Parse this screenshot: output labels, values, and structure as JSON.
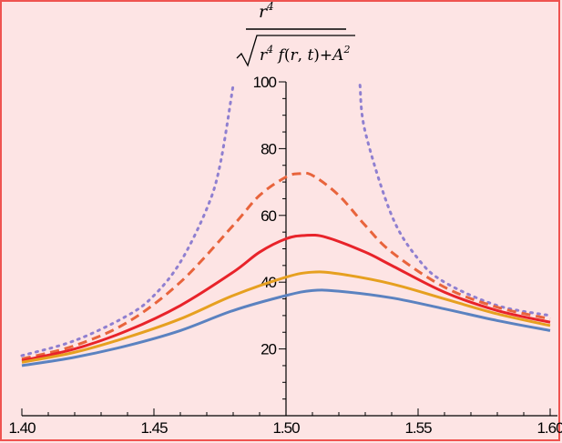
{
  "chart_data": {
    "type": "line",
    "title_numerator_base": "r",
    "title_numerator_exp": "4",
    "title_denominator_parts": [
      "r",
      "4",
      " f",
      "(",
      "r",
      ", ",
      "t",
      ")+",
      "A",
      "2"
    ],
    "xlim": [
      1.4,
      1.6
    ],
    "ylim": [
      0,
      100
    ],
    "x_ticks": [
      "1.40",
      "1.45",
      "1.50",
      "1.55",
      "1.60"
    ],
    "x_tick_values": [
      1.4,
      1.45,
      1.5,
      1.55,
      1.6
    ],
    "y_ticks": [
      "20",
      "40",
      "60",
      "80",
      "100"
    ],
    "y_tick_values": [
      20,
      40,
      60,
      80,
      100
    ],
    "y_axis_at_x": 1.5,
    "series": [
      {
        "style": "dotted",
        "color": "#8f7fd0",
        "x": [
          1.4,
          1.42,
          1.44,
          1.45,
          1.46,
          1.47,
          1.475,
          1.48,
          1.528,
          1.53,
          1.54,
          1.55,
          1.56,
          1.58,
          1.6
        ],
        "y": [
          18,
          22.5,
          30,
          36,
          46,
          62,
          75,
          99,
          99,
          85,
          60,
          47,
          40,
          33,
          30
        ]
      },
      {
        "style": "dashed",
        "color": "#e8643c",
        "x": [
          1.4,
          1.42,
          1.44,
          1.46,
          1.48,
          1.49,
          1.5,
          1.505,
          1.51,
          1.52,
          1.53,
          1.54,
          1.56,
          1.58,
          1.6
        ],
        "y": [
          17,
          21,
          28,
          40,
          57,
          66,
          71.5,
          72.5,
          72,
          66,
          57,
          49,
          38.5,
          32.5,
          29
        ]
      },
      {
        "style": "solid",
        "color": "#e8232a",
        "x": [
          1.4,
          1.42,
          1.44,
          1.46,
          1.48,
          1.49,
          1.5,
          1.507,
          1.515,
          1.53,
          1.54,
          1.56,
          1.58,
          1.6
        ],
        "y": [
          16.5,
          20,
          25.5,
          33,
          43,
          49,
          53,
          54,
          53.5,
          49,
          45,
          37,
          31.5,
          28
        ]
      },
      {
        "style": "solid",
        "color": "#e6a020",
        "x": [
          1.4,
          1.42,
          1.44,
          1.46,
          1.48,
          1.5,
          1.51,
          1.52,
          1.54,
          1.56,
          1.58,
          1.6
        ],
        "y": [
          16,
          19,
          23.5,
          29,
          36,
          41.5,
          43,
          42.5,
          39.5,
          35,
          30.5,
          27
        ]
      },
      {
        "style": "solid",
        "color": "#5b82c0",
        "x": [
          1.4,
          1.42,
          1.44,
          1.46,
          1.48,
          1.5,
          1.51,
          1.52,
          1.54,
          1.56,
          1.58,
          1.6
        ],
        "y": [
          15,
          17.5,
          21,
          25.5,
          31.5,
          36,
          37.5,
          37.3,
          35.3,
          32,
          28.5,
          25.5
        ]
      }
    ]
  }
}
